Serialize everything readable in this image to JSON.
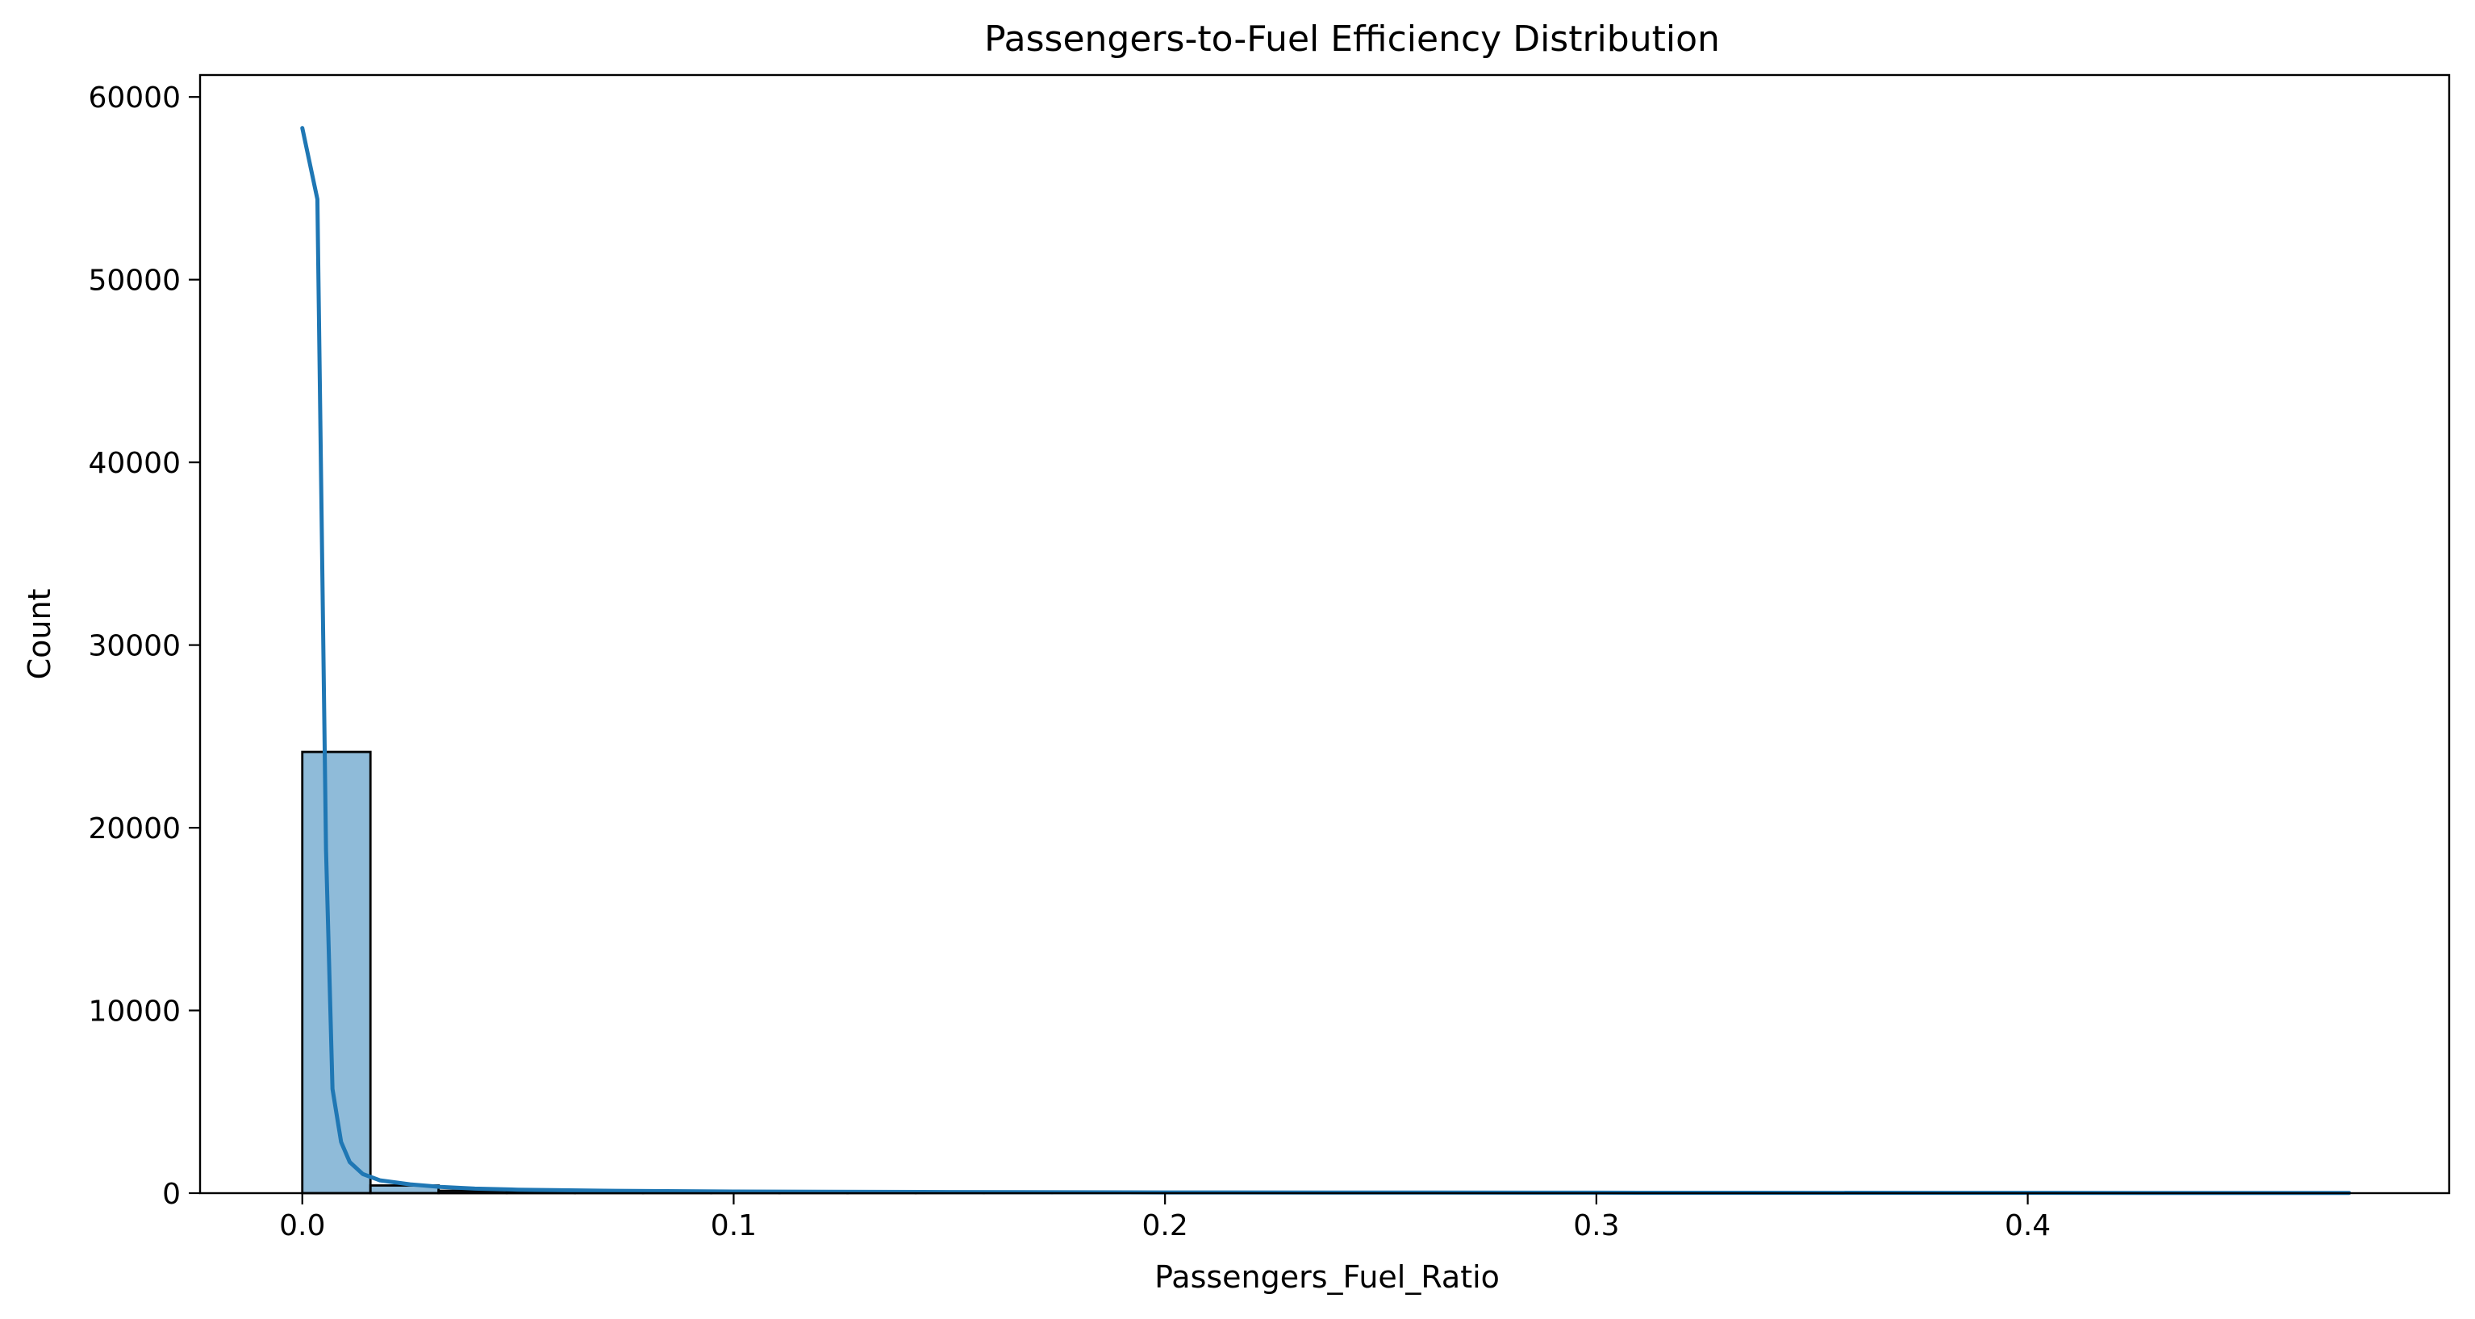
{
  "chart_data": {
    "type": "bar",
    "title": "Passengers-to-Fuel Efficiency Distribution",
    "xlabel": "Passengers_Fuel_Ratio",
    "ylabel": "Count",
    "xlim": [
      -0.0237,
      0.4977
    ],
    "ylim": [
      0,
      61200
    ],
    "x_ticks": [
      0.0,
      0.1,
      0.2,
      0.3,
      0.4
    ],
    "x_tick_labels": [
      "0.0",
      "0.1",
      "0.2",
      "0.3",
      "0.4"
    ],
    "y_ticks": [
      0,
      10000,
      20000,
      30000,
      40000,
      50000,
      60000
    ],
    "y_tick_labels": [
      "0",
      "10000",
      "20000",
      "30000",
      "40000",
      "50000",
      "60000"
    ],
    "bins": {
      "start": 0.0,
      "width": 0.0158,
      "counts": [
        24150,
        420,
        130,
        60,
        35,
        20,
        12,
        8,
        6,
        5,
        4,
        3,
        3,
        2,
        2,
        2,
        1,
        1,
        1,
        1,
        1,
        1,
        1,
        1,
        1,
        1,
        1,
        1,
        1,
        1
      ]
    },
    "series": [
      {
        "type": "kde",
        "x": [
          0.0,
          0.0035,
          0.0055,
          0.007,
          0.009,
          0.011,
          0.014,
          0.018,
          0.025,
          0.032,
          0.04,
          0.05,
          0.07,
          0.1,
          0.15,
          0.2,
          0.3,
          0.4,
          0.4745
        ],
        "y": [
          58300,
          54400,
          18800,
          5700,
          2800,
          1700,
          1050,
          700,
          480,
          340,
          250,
          190,
          130,
          90,
          60,
          40,
          25,
          15,
          10
        ]
      }
    ],
    "grid": false,
    "colors": {
      "bar_fill": "#1f77b4",
      "line": "#1f77b4",
      "edge": "#000000"
    }
  }
}
